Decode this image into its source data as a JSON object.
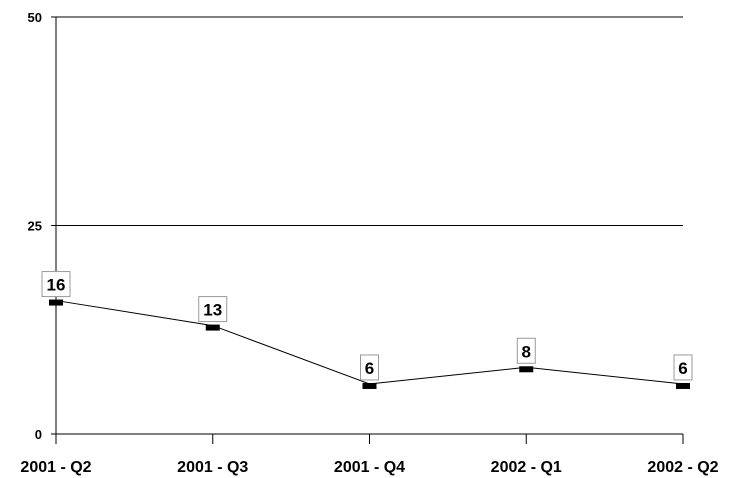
{
  "chart_data": {
    "type": "line",
    "categories": [
      "2001 - Q2",
      "2001 - Q3",
      "2001 - Q4",
      "2002 - Q1",
      "2002 - Q2"
    ],
    "values": [
      16,
      13,
      6,
      8,
      6
    ],
    "data_labels": [
      "16",
      "13",
      "6",
      "8",
      "6"
    ],
    "title": "",
    "xlabel": "",
    "ylabel": "",
    "ylim": [
      0,
      50
    ],
    "yticks": [
      0,
      25,
      50
    ],
    "ytick_labels": [
      "0",
      "25",
      "50"
    ],
    "grid": "horizontal",
    "legend": "none",
    "colors": {
      "line": "#000000",
      "marker": "#000000",
      "grid": "#000000",
      "label_box": "#ffffff",
      "label_border": "#999999"
    }
  }
}
